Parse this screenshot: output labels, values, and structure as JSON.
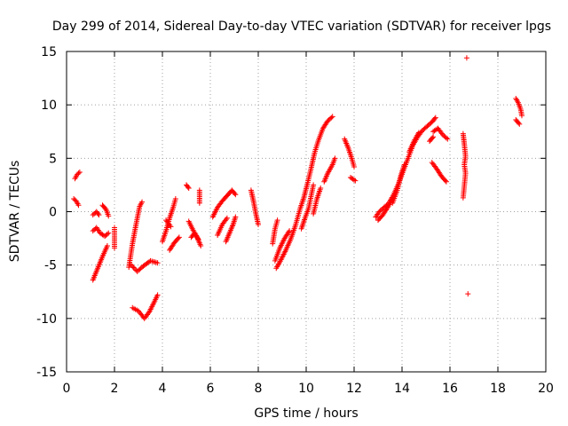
{
  "chart_data": {
    "type": "scatter",
    "title": "Day 299 of 2014, Sidereal Day-to-day VTEC variation (SDTVAR) for receiver lpgs",
    "xlabel": "GPS time / hours",
    "ylabel": "SDTVAR / TECUs",
    "xlim": [
      0,
      20
    ],
    "ylim": [
      -15,
      15
    ],
    "xticks": [
      0,
      2,
      4,
      6,
      8,
      10,
      12,
      14,
      16,
      18,
      20
    ],
    "yticks": [
      -15,
      -10,
      -5,
      0,
      5,
      10,
      15
    ],
    "grid": true,
    "marker": "plus",
    "color": "#ff0000",
    "series": [
      {
        "name": "SDTVAR",
        "segments": [
          [
            [
              0.35,
              3.1
            ],
            [
              0.45,
              3.5
            ],
            [
              0.55,
              3.7
            ]
          ],
          [
            [
              0.3,
              1.2
            ],
            [
              0.4,
              1.0
            ],
            [
              0.5,
              0.6
            ]
          ],
          [
            [
              1.1,
              -6.4
            ],
            [
              1.3,
              -5.3
            ],
            [
              1.5,
              -4.2
            ],
            [
              1.7,
              -3.2
            ]
          ],
          [
            [
              1.1,
              -1.8
            ],
            [
              1.25,
              -1.5
            ],
            [
              1.4,
              -2.0
            ],
            [
              1.6,
              -2.3
            ],
            [
              1.75,
              -2.0
            ]
          ],
          [
            [
              1.1,
              -0.3
            ],
            [
              1.25,
              0.0
            ],
            [
              1.35,
              -0.3
            ]
          ],
          [
            [
              1.5,
              0.6
            ],
            [
              1.65,
              0.2
            ],
            [
              1.75,
              -0.4
            ]
          ],
          [
            [
              2.0,
              -1.5
            ],
            [
              2.0,
              -3.4
            ]
          ],
          [
            [
              2.6,
              -5.2
            ],
            [
              2.75,
              -3.0
            ],
            [
              2.9,
              -1.2
            ],
            [
              3.05,
              0.5
            ],
            [
              3.15,
              0.9
            ]
          ],
          [
            [
              2.7,
              -5.0
            ],
            [
              2.95,
              -5.6
            ],
            [
              3.2,
              -5.1
            ],
            [
              3.5,
              -4.6
            ],
            [
              3.8,
              -4.8
            ]
          ],
          [
            [
              2.75,
              -9.0
            ],
            [
              3.0,
              -9.3
            ],
            [
              3.25,
              -10.0
            ],
            [
              3.45,
              -9.4
            ],
            [
              3.65,
              -8.5
            ],
            [
              3.8,
              -7.8
            ]
          ],
          [
            [
              4.0,
              -2.8
            ],
            [
              4.15,
              -1.8
            ],
            [
              4.3,
              -0.6
            ],
            [
              4.45,
              0.4
            ],
            [
              4.55,
              1.2
            ]
          ],
          [
            [
              4.3,
              -3.6
            ],
            [
              4.5,
              -2.9
            ],
            [
              4.7,
              -2.4
            ]
          ],
          [
            [
              4.15,
              -0.8
            ],
            [
              4.35,
              -1.4
            ]
          ],
          [
            [
              5.0,
              2.5
            ],
            [
              5.1,
              2.2
            ]
          ],
          [
            [
              5.1,
              -0.9
            ],
            [
              5.25,
              -1.6
            ],
            [
              5.45,
              -2.4
            ],
            [
              5.6,
              -3.2
            ]
          ],
          [
            [
              5.2,
              -2.4
            ],
            [
              5.35,
              -2.0
            ],
            [
              5.5,
              -2.6
            ]
          ],
          [
            [
              5.55,
              2.0
            ],
            [
              5.55,
              1.4
            ],
            [
              5.55,
              0.8
            ]
          ],
          [
            [
              6.1,
              -0.5
            ],
            [
              6.3,
              0.4
            ],
            [
              6.5,
              1.0
            ],
            [
              6.7,
              1.5
            ],
            [
              6.9,
              2.0
            ],
            [
              7.05,
              1.6
            ]
          ],
          [
            [
              6.3,
              -2.2
            ],
            [
              6.5,
              -1.2
            ],
            [
              6.7,
              -0.6
            ]
          ],
          [
            [
              6.65,
              -2.8
            ],
            [
              6.8,
              -2.0
            ],
            [
              6.95,
              -1.2
            ],
            [
              7.05,
              -0.5
            ]
          ],
          [
            [
              7.7,
              2.0
            ],
            [
              7.8,
              1.0
            ],
            [
              7.9,
              -0.2
            ],
            [
              8.0,
              -1.2
            ]
          ],
          [
            [
              8.6,
              -3.0
            ],
            [
              8.7,
              -1.6
            ],
            [
              8.8,
              -0.8
            ]
          ],
          [
            [
              8.7,
              -4.6
            ],
            [
              8.9,
              -3.4
            ],
            [
              9.1,
              -2.5
            ],
            [
              9.3,
              -1.8
            ]
          ],
          [
            [
              8.75,
              -5.3
            ],
            [
              8.95,
              -4.5
            ],
            [
              9.15,
              -3.6
            ],
            [
              9.35,
              -2.6
            ],
            [
              9.55,
              -1.3
            ],
            [
              9.75,
              0.3
            ],
            [
              9.9,
              1.3
            ],
            [
              10.05,
              2.6
            ],
            [
              10.2,
              4.0
            ],
            [
              10.35,
              5.5
            ],
            [
              10.5,
              6.6
            ],
            [
              10.7,
              7.8
            ],
            [
              10.9,
              8.5
            ],
            [
              11.1,
              8.9
            ]
          ],
          [
            [
              9.8,
              -1.6
            ],
            [
              9.95,
              -0.6
            ],
            [
              10.1,
              0.3
            ],
            [
              10.2,
              1.4
            ],
            [
              10.3,
              2.5
            ]
          ],
          [
            [
              10.3,
              -0.2
            ],
            [
              10.45,
              1.2
            ],
            [
              10.6,
              2.2
            ]
          ],
          [
            [
              10.75,
              2.8
            ],
            [
              10.9,
              3.6
            ],
            [
              11.1,
              4.4
            ],
            [
              11.2,
              5.0
            ]
          ],
          [
            [
              11.6,
              6.8
            ],
            [
              11.75,
              6.0
            ],
            [
              11.9,
              5.0
            ],
            [
              12.0,
              4.2
            ]
          ],
          [
            [
              11.85,
              3.2
            ],
            [
              12.05,
              2.9
            ]
          ],
          [
            [
              12.9,
              -0.5
            ],
            [
              13.05,
              0.0
            ],
            [
              13.25,
              0.4
            ],
            [
              13.45,
              0.8
            ],
            [
              13.65,
              1.6
            ],
            [
              13.85,
              2.6
            ],
            [
              14.05,
              3.8
            ],
            [
              14.25,
              5.0
            ],
            [
              14.45,
              6.2
            ],
            [
              14.65,
              7.0
            ],
            [
              14.85,
              7.6
            ],
            [
              15.05,
              8.0
            ],
            [
              15.25,
              8.4
            ],
            [
              15.4,
              8.8
            ]
          ],
          [
            [
              13.0,
              -0.8
            ],
            [
              13.2,
              -0.3
            ],
            [
              13.4,
              0.4
            ],
            [
              13.6,
              1.2
            ]
          ],
          [
            [
              13.6,
              0.8
            ],
            [
              13.8,
              2.0
            ],
            [
              13.95,
              3.4
            ],
            [
              14.1,
              4.4
            ]
          ],
          [
            [
              14.3,
              5.6
            ],
            [
              14.5,
              6.6
            ],
            [
              14.7,
              7.4
            ]
          ],
          [
            [
              15.3,
              7.5
            ],
            [
              15.5,
              7.8
            ],
            [
              15.7,
              7.2
            ],
            [
              15.9,
              6.8
            ]
          ],
          [
            [
              15.15,
              6.6
            ],
            [
              15.3,
              7.0
            ]
          ],
          [
            [
              15.25,
              4.6
            ],
            [
              15.45,
              4.0
            ],
            [
              15.65,
              3.3
            ],
            [
              15.85,
              2.8
            ]
          ],
          [
            [
              16.55,
              7.3
            ],
            [
              16.6,
              6.3
            ],
            [
              16.65,
              5.2
            ],
            [
              16.6,
              4.4
            ],
            [
              16.65,
              3.6
            ],
            [
              16.55,
              1.3
            ]
          ],
          [
            [
              16.7,
              14.4
            ]
          ],
          [
            [
              16.75,
              -7.7
            ]
          ],
          [
            [
              18.75,
              10.6
            ],
            [
              18.85,
              10.2
            ],
            [
              18.95,
              9.6
            ],
            [
              19.0,
              9.0
            ]
          ],
          [
            [
              18.75,
              8.6
            ],
            [
              18.9,
              8.2
            ]
          ]
        ]
      }
    ]
  }
}
